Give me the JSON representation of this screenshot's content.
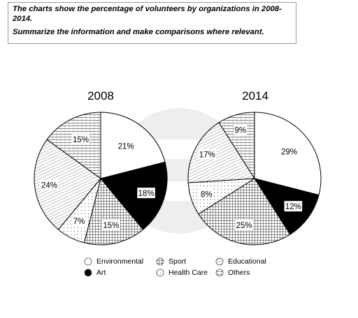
{
  "prompt": {
    "line1": "The charts show the percentage of volunteers by organizations in 2008-2014.",
    "line2": "Summarize the information and make comparisons where relevant."
  },
  "chart_data": [
    {
      "type": "pie",
      "title": "2008",
      "categories": [
        "Environmental",
        "Art",
        "Sport",
        "Health Care",
        "Educational",
        "Others"
      ],
      "values": [
        21,
        18,
        15,
        7,
        24,
        15
      ],
      "labels": [
        "21%",
        "18%",
        "15%",
        "7%",
        "24%",
        "15%"
      ]
    },
    {
      "type": "pie",
      "title": "2014",
      "categories": [
        "Environmental",
        "Art",
        "Sport",
        "Health Care",
        "Educational",
        "Others"
      ],
      "values": [
        29,
        12,
        25,
        8,
        17,
        9
      ],
      "labels": [
        "29%",
        "12%",
        "25%",
        "8%",
        "17%",
        "9%"
      ]
    }
  ],
  "legend": [
    {
      "label": "Environmental",
      "pattern": "white"
    },
    {
      "label": "Art",
      "pattern": "black"
    },
    {
      "label": "Sport",
      "pattern": "grid"
    },
    {
      "label": "Health Care",
      "pattern": "dots"
    },
    {
      "label": "Educational",
      "pattern": "diag"
    },
    {
      "label": "Others",
      "pattern": "hlines"
    }
  ]
}
